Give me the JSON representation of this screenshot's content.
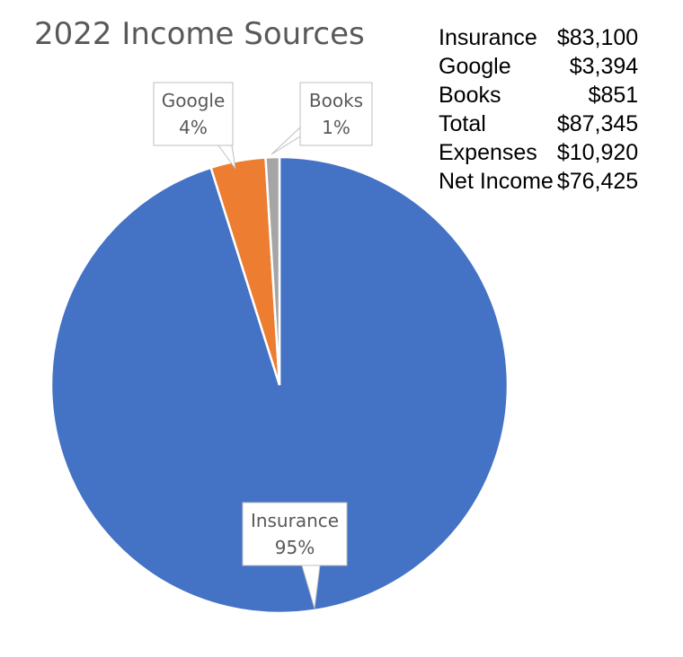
{
  "chart_data": {
    "type": "pie",
    "title": "2022 Income Sources",
    "slices": [
      {
        "label": "Insurance",
        "value": 83100,
        "percent_label": "95%",
        "color": "#4472C4"
      },
      {
        "label": "Google",
        "value": 3394,
        "percent_label": "4%",
        "color": "#ED7D31"
      },
      {
        "label": "Books",
        "value": 851,
        "percent_label": "1%",
        "color": "#A5A5A5"
      }
    ]
  },
  "summary": [
    {
      "label": "Insurance",
      "amount": "$83,100"
    },
    {
      "label": "Google",
      "amount": "$3,394"
    },
    {
      "label": "Books",
      "amount": "$851"
    },
    {
      "label": "Total",
      "amount": "$87,345"
    },
    {
      "label": "Expenses",
      "amount": "$10,920"
    },
    {
      "label": "Net Income",
      "amount": "$76,425"
    }
  ]
}
